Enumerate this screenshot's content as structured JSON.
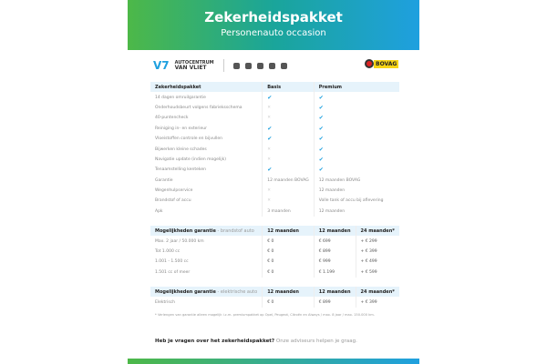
{
  "header": {
    "title": "Zekerheidspakket",
    "subtitle": "Personenauto occasion"
  },
  "logos": {
    "dealer_line1": "AUTOCENTRUM",
    "dealer_line2": "VAN VLIET",
    "bovag": "BOVAG"
  },
  "table": {
    "headers": [
      "Zekerheidspakket",
      "Basis",
      "Premium"
    ],
    "rows": [
      [
        "14 dagen omruilgarantie",
        "check",
        "check"
      ],
      [
        "Onderhoudsbeurt volgens fabrieksschema",
        "cross",
        "check"
      ],
      [
        "40-puntencheck",
        "cross",
        "check"
      ],
      [
        "Reiniging in- en exterieur",
        "check",
        "check"
      ],
      [
        "Vloeistoffen controle en bijvullen",
        "check",
        "check"
      ],
      [
        "Bijwerken kleine schades",
        "cross",
        "check"
      ],
      [
        "Navigatie update (indien mogelijk)",
        "cross",
        "check"
      ],
      [
        "Tenaamstelling kenteken",
        "check",
        "check"
      ],
      [
        "Garantie",
        "12 maanden BOVAG",
        "12 maanden BOVAG"
      ],
      [
        "Wegenhulpservice",
        "cross",
        "12 maanden"
      ],
      [
        "Brandstof of accu",
        "cross",
        "Volle tank of accu bij aflevering"
      ],
      [
        "Apk",
        "3 maanden",
        "12 maanden"
      ]
    ]
  },
  "fuel": {
    "label": "Mogelijkheden garantie",
    "type": " - brandstof auto",
    "cols": [
      "12 maanden",
      "12 maanden",
      "24 maanden*"
    ],
    "rows": [
      [
        "Max. 2 jaar / 50.000 km",
        "€ 0",
        "€ 699",
        "+ € 299"
      ],
      [
        "Tot 1.000 cc",
        "€ 0",
        "€ 899",
        "+ € 399"
      ],
      [
        "1.001 - 1.500 cc",
        "€ 0",
        "€ 999",
        "+ € 499"
      ],
      [
        "1.501 cc of meer",
        "€ 0",
        "€ 1.199",
        "+ € 599"
      ]
    ]
  },
  "electric": {
    "label": "Mogelijkheden garantie",
    "type": " - elektrische auto",
    "cols": [
      "12 maanden",
      "12 maanden",
      "24 maanden*"
    ],
    "rows": [
      [
        "Elektrisch",
        "€ 0",
        "€ 899",
        "+ € 399"
      ]
    ]
  },
  "footnote": "* Verlengen van garantie alleen mogelijk i.c.m. premiumpakket op Opel, Peugeot, Citroën en Aiways / max. 8 jaar / max. 150.000 km.",
  "question": {
    "bold": "Heb je vragen over het zekerheidspakket?",
    "rest": " Onze adviseurs helpen je graag."
  },
  "colors": {
    "accent": "#1fa0df",
    "green": "#4db848"
  }
}
